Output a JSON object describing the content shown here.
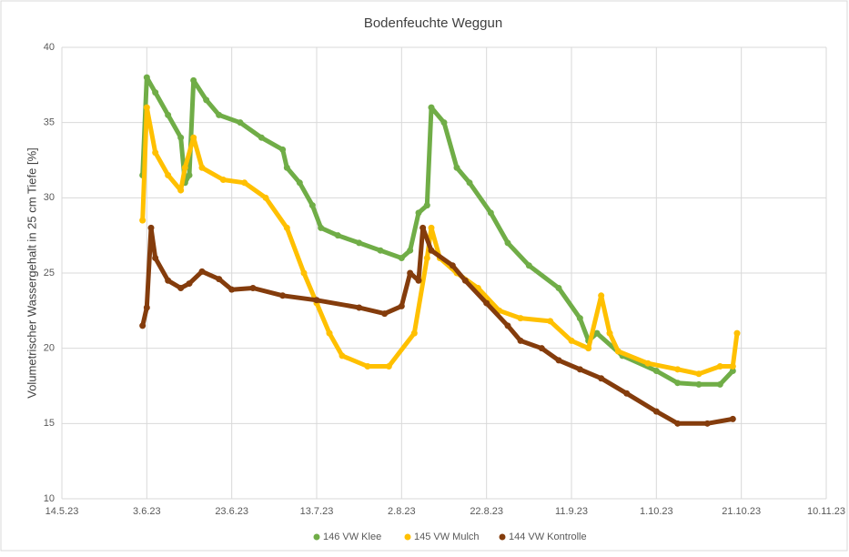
{
  "chart_data": {
    "type": "scatter",
    "title": "Bodenfeuchte Weggun",
    "ylabel": "Volumetrischer Wassergehalt in 25 cm Tiefe [%]",
    "xlim": [
      "2023-05-14",
      "2023-11-10"
    ],
    "xticks": [
      {
        "value": "2023-05-14",
        "label": "14.5.23"
      },
      {
        "value": "2023-06-03",
        "label": "3.6.23"
      },
      {
        "value": "2023-06-23",
        "label": "23.6.23"
      },
      {
        "value": "2023-07-13",
        "label": "13.7.23"
      },
      {
        "value": "2023-08-02",
        "label": "2.8.23"
      },
      {
        "value": "2023-08-22",
        "label": "22.8.23"
      },
      {
        "value": "2023-09-11",
        "label": "11.9.23"
      },
      {
        "value": "2023-10-01",
        "label": "1.10.23"
      },
      {
        "value": "2023-10-21",
        "label": "21.10.23"
      },
      {
        "value": "2023-11-10",
        "label": "10.11.23"
      }
    ],
    "ylim": [
      10,
      40
    ],
    "yticks": [
      10,
      15,
      20,
      25,
      30,
      35,
      40
    ],
    "grid": true,
    "legend": "bottom",
    "series": [
      {
        "name": "146 VW Klee",
        "color": "#70ad47",
        "x": [
          "2023-06-02",
          "2023-06-03",
          "2023-06-05",
          "2023-06-08",
          "2023-06-11",
          "2023-06-12",
          "2023-06-13",
          "2023-06-14",
          "2023-06-17",
          "2023-06-20",
          "2023-06-25",
          "2023-06-30",
          "2023-07-05",
          "2023-07-06",
          "2023-07-09",
          "2023-07-12",
          "2023-07-14",
          "2023-07-18",
          "2023-07-23",
          "2023-07-28",
          "2023-08-02",
          "2023-08-04",
          "2023-08-06",
          "2023-08-08",
          "2023-08-09",
          "2023-08-12",
          "2023-08-15",
          "2023-08-18",
          "2023-08-23",
          "2023-08-27",
          "2023-09-01",
          "2023-09-08",
          "2023-09-13",
          "2023-09-15",
          "2023-09-17",
          "2023-09-23",
          "2023-10-01",
          "2023-10-06",
          "2023-10-11",
          "2023-10-16",
          "2023-10-19"
        ],
        "values": [
          31.5,
          38,
          37,
          35.5,
          34,
          31,
          31.5,
          37.8,
          36.5,
          35.5,
          35,
          34,
          33.2,
          32,
          31,
          29.5,
          28,
          27.5,
          27,
          26.5,
          26,
          26.5,
          29,
          29.5,
          36,
          35,
          32,
          31,
          29,
          27,
          25.5,
          24,
          22,
          20.5,
          21,
          19.5,
          18.5,
          17.7,
          17.6,
          17.6,
          18.5
        ]
      },
      {
        "name": "145 VW Mulch",
        "color": "#ffc000",
        "x": [
          "2023-06-02",
          "2023-06-03",
          "2023-06-05",
          "2023-06-08",
          "2023-06-11",
          "2023-06-12",
          "2023-06-14",
          "2023-06-16",
          "2023-06-21",
          "2023-06-26",
          "2023-07-01",
          "2023-07-06",
          "2023-07-10",
          "2023-07-13",
          "2023-07-16",
          "2023-07-19",
          "2023-07-25",
          "2023-07-30",
          "2023-08-05",
          "2023-08-08",
          "2023-08-09",
          "2023-08-11",
          "2023-08-15",
          "2023-08-20",
          "2023-08-25",
          "2023-08-30",
          "2023-09-06",
          "2023-09-11",
          "2023-09-15",
          "2023-09-18",
          "2023-09-20",
          "2023-09-22",
          "2023-09-29",
          "2023-10-06",
          "2023-10-11",
          "2023-10-16",
          "2023-10-19",
          "2023-10-20"
        ],
        "values": [
          28.5,
          36,
          33,
          31.5,
          30.5,
          32,
          34,
          32,
          31.2,
          31,
          30,
          28,
          25,
          23,
          21,
          19.5,
          18.8,
          18.8,
          21,
          26,
          28,
          26,
          25,
          24,
          22.5,
          22,
          21.8,
          20.5,
          20,
          23.5,
          21,
          19.8,
          19,
          18.6,
          18.3,
          18.8,
          18.8,
          21
        ]
      },
      {
        "name": "144 VW Kontrolle",
        "color": "#843c0c",
        "x": [
          "2023-06-02",
          "2023-06-03",
          "2023-06-04",
          "2023-06-05",
          "2023-06-08",
          "2023-06-11",
          "2023-06-13",
          "2023-06-16",
          "2023-06-20",
          "2023-06-23",
          "2023-06-28",
          "2023-07-05",
          "2023-07-13",
          "2023-07-23",
          "2023-07-29",
          "2023-08-02",
          "2023-08-04",
          "2023-08-06",
          "2023-08-07",
          "2023-08-09",
          "2023-08-14",
          "2023-08-17",
          "2023-08-22",
          "2023-08-27",
          "2023-08-30",
          "2023-09-04",
          "2023-09-08",
          "2023-09-13",
          "2023-09-18",
          "2023-09-24",
          "2023-10-01",
          "2023-10-06",
          "2023-10-13",
          "2023-10-19"
        ],
        "values": [
          21.5,
          22.7,
          28,
          26,
          24.5,
          24,
          24.3,
          25.1,
          24.6,
          23.9,
          24,
          23.5,
          23.2,
          22.7,
          22.3,
          22.8,
          25,
          24.5,
          28,
          26.5,
          25.5,
          24.5,
          23,
          21.5,
          20.5,
          20,
          19.2,
          18.6,
          18,
          17,
          15.8,
          15,
          15,
          15.3
        ]
      }
    ]
  }
}
